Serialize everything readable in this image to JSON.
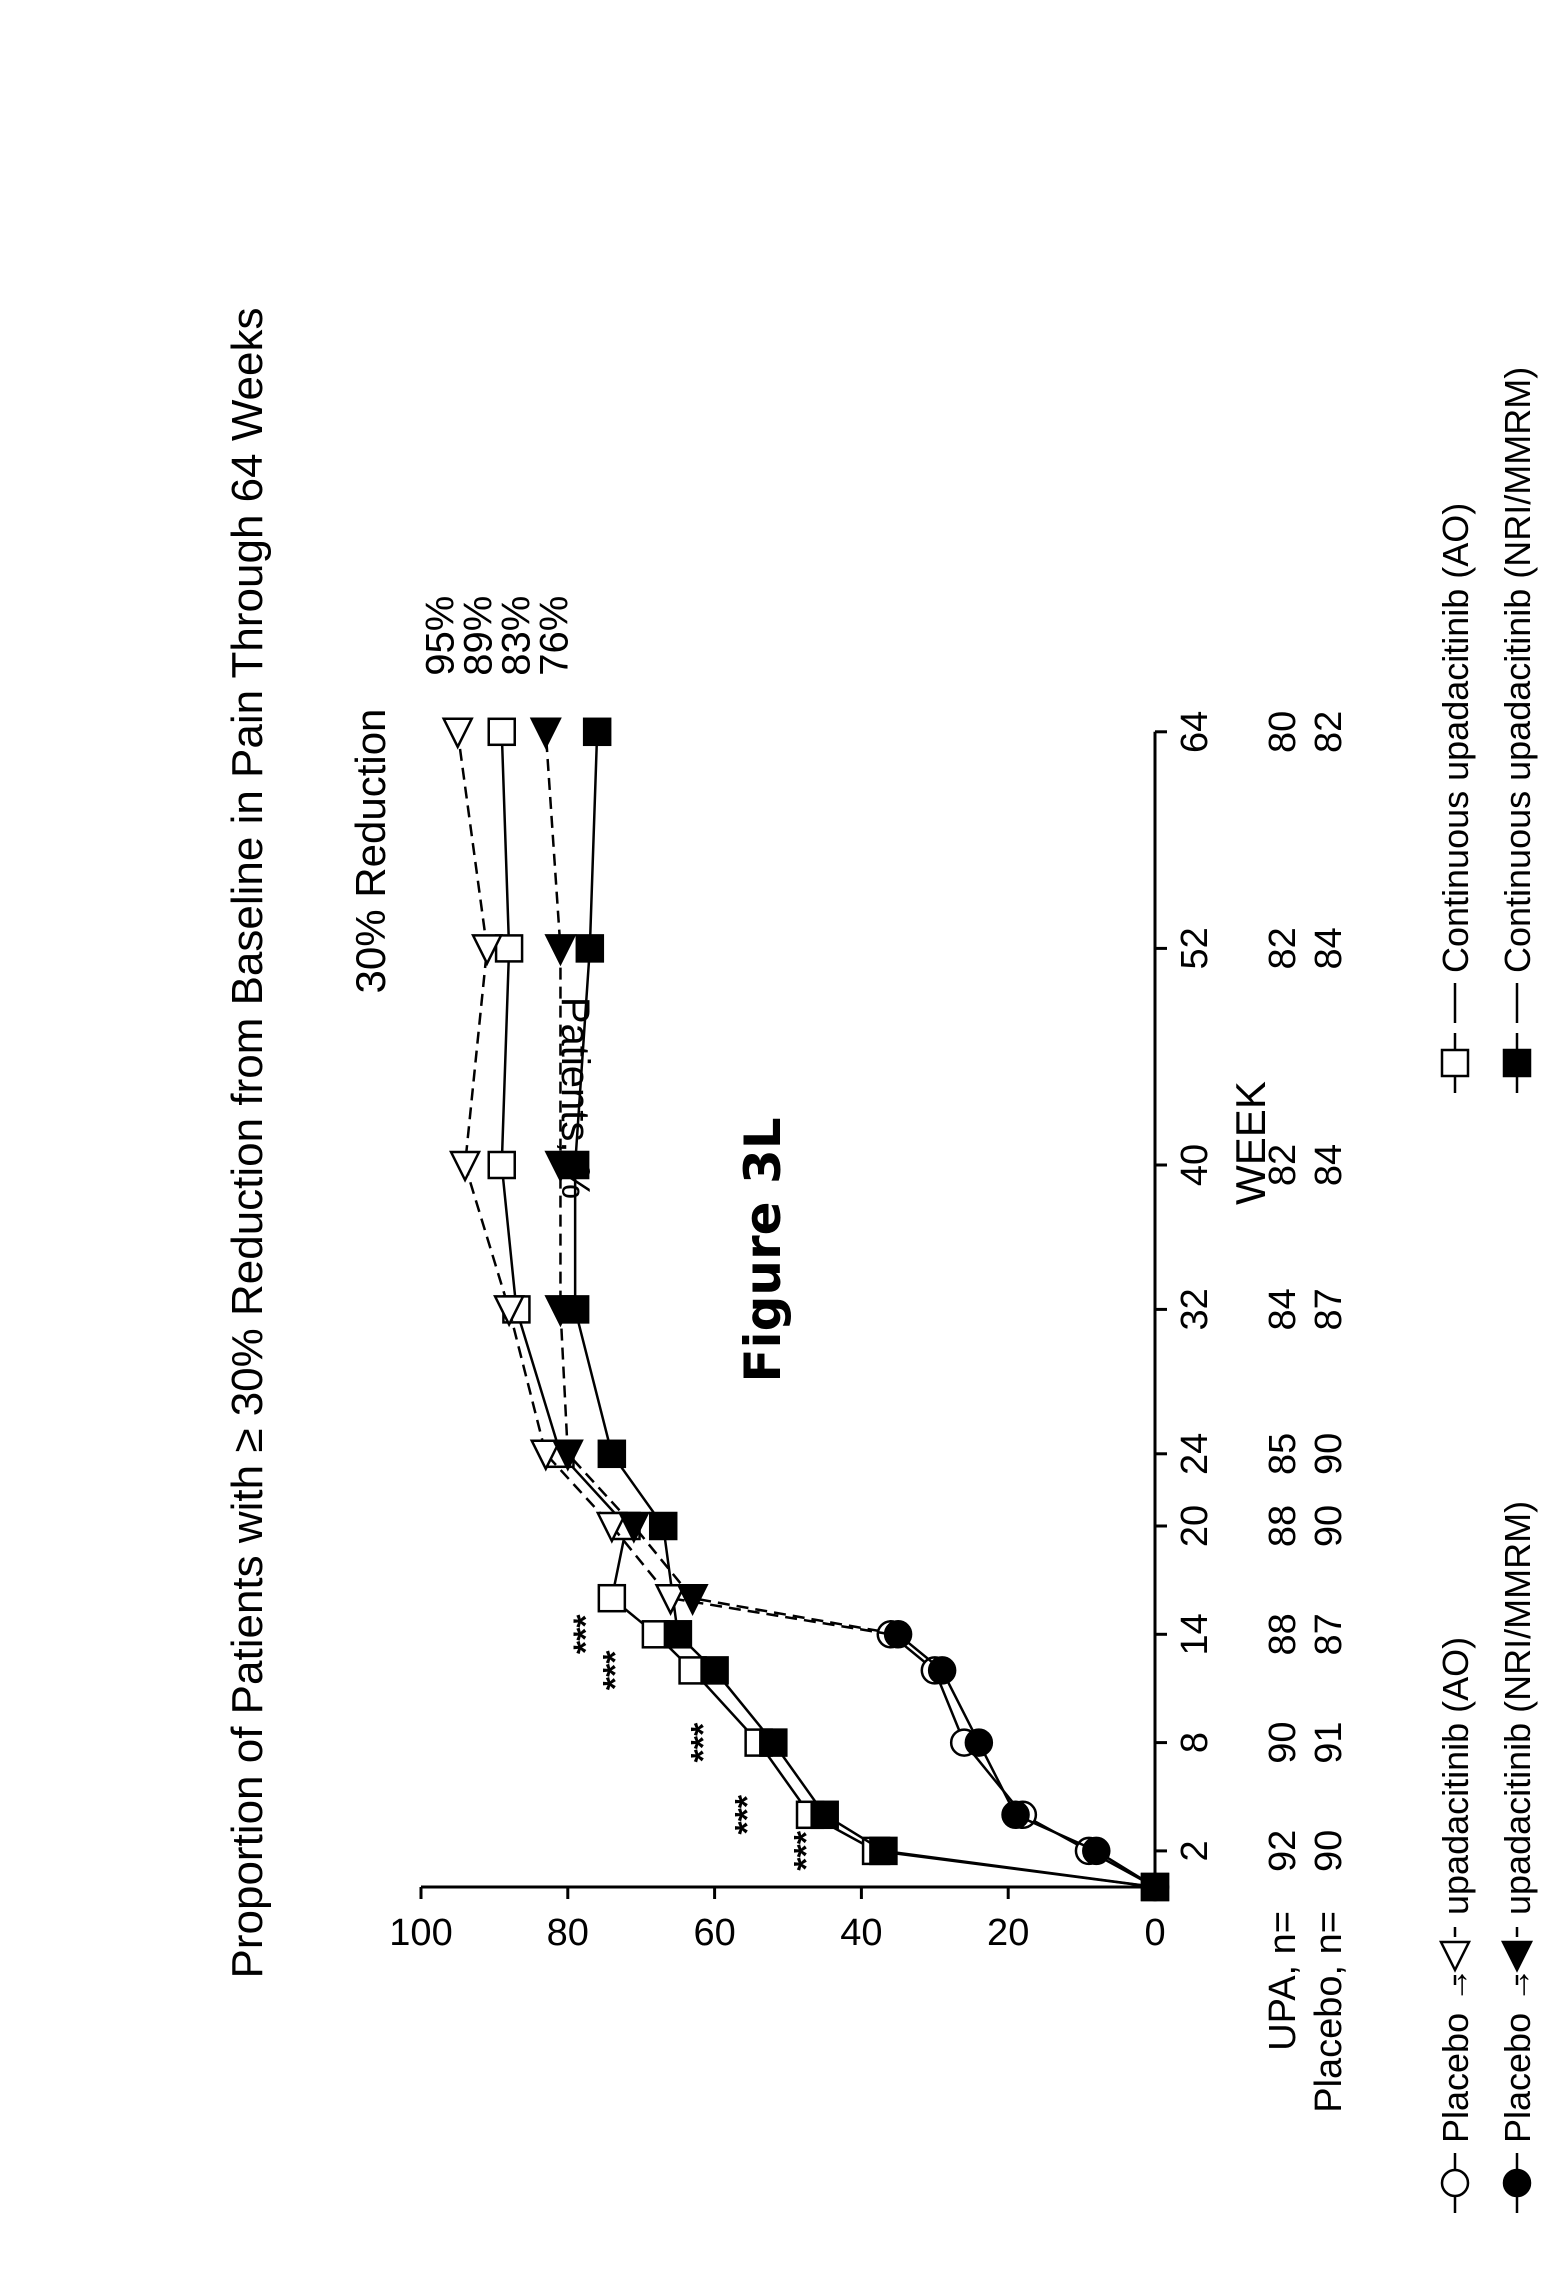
{
  "figure_label": "Figure 3L",
  "chart_data": {
    "type": "line",
    "title": "Proportion of Patients with ≥ 30% Reduction from Baseline in Pain Through 64 Weeks",
    "subtitle": "30% Reduction",
    "xlabel": "WEEK",
    "ylabel": "Patients, %",
    "x_ticks": [
      2,
      8,
      14,
      20,
      24,
      32,
      40,
      52,
      64
    ],
    "y_ticks": [
      0,
      20,
      40,
      60,
      80,
      100
    ],
    "ylim": [
      0,
      100
    ],
    "grid": false,
    "series": [
      {
        "name": "Continuous upadacitinib (AO)",
        "marker": "square-open",
        "line": "solid",
        "points": [
          [
            0,
            0
          ],
          [
            2,
            38
          ],
          [
            4,
            47
          ],
          [
            8,
            54
          ],
          [
            12,
            63
          ],
          [
            14,
            68
          ],
          [
            16,
            74
          ],
          [
            20,
            72
          ],
          [
            24,
            81
          ],
          [
            32,
            87
          ],
          [
            40,
            89
          ],
          [
            52,
            88
          ],
          [
            64,
            89
          ]
        ],
        "end_label": "89%"
      },
      {
        "name": "Continuous upadacitinib (NRI/MMRM)",
        "marker": "square-filled",
        "line": "solid",
        "points": [
          [
            0,
            0
          ],
          [
            2,
            37
          ],
          [
            4,
            45
          ],
          [
            8,
            52
          ],
          [
            12,
            60
          ],
          [
            14,
            65
          ],
          [
            20,
            67
          ],
          [
            24,
            74
          ],
          [
            32,
            79
          ],
          [
            40,
            79
          ],
          [
            52,
            77
          ],
          [
            64,
            76
          ]
        ],
        "end_label": "76%"
      },
      {
        "name": "Placebo → upadacitinib (AO)",
        "marker": "circle-open",
        "line": "solid",
        "points": [
          [
            0,
            0
          ],
          [
            2,
            9
          ],
          [
            4,
            18
          ],
          [
            8,
            26
          ],
          [
            12,
            30
          ],
          [
            14,
            36
          ]
        ]
      },
      {
        "name": "Placebo → upadacitinib (NRI/MMRM)",
        "marker": "circle-filled",
        "line": "solid",
        "points": [
          [
            0,
            0
          ],
          [
            2,
            8
          ],
          [
            4,
            19
          ],
          [
            8,
            24
          ],
          [
            12,
            29
          ],
          [
            14,
            35
          ]
        ]
      },
      {
        "name": "Placebo → upadacitinib (AO)",
        "marker": "triangle-open",
        "line": "dashed",
        "points": [
          [
            14,
            36
          ],
          [
            16,
            66
          ],
          [
            20,
            74
          ],
          [
            24,
            83
          ],
          [
            32,
            88
          ],
          [
            40,
            94
          ],
          [
            52,
            91
          ],
          [
            64,
            95
          ]
        ],
        "end_label": "95%"
      },
      {
        "name": "Placebo → upadacitinib (NRI/MMRM)",
        "marker": "triangle-filled",
        "line": "dashed",
        "points": [
          [
            14,
            35
          ],
          [
            16,
            63
          ],
          [
            20,
            71
          ],
          [
            24,
            80
          ],
          [
            32,
            81
          ],
          [
            40,
            81
          ],
          [
            52,
            81
          ],
          [
            64,
            83
          ]
        ],
        "end_label": "83%"
      }
    ],
    "annotations": [
      {
        "text": "***",
        "x": 2,
        "y": 46
      },
      {
        "text": "***",
        "x": 4,
        "y": 54
      },
      {
        "text": "***",
        "x": 8,
        "y": 60
      },
      {
        "text": "***",
        "x": 12,
        "y": 72
      },
      {
        "text": "***",
        "x": 14,
        "y": 76
      }
    ],
    "n_table": {
      "weeks": [
        2,
        8,
        14,
        20,
        24,
        32,
        40,
        52,
        64
      ],
      "rows": [
        {
          "label": "UPA, n=",
          "values": [
            92,
            90,
            88,
            88,
            85,
            84,
            82,
            82,
            80
          ]
        },
        {
          "label": "Placebo, n=",
          "values": [
            90,
            91,
            87,
            90,
            90,
            87,
            84,
            84,
            82
          ]
        }
      ]
    },
    "legend": [
      {
        "prefix": "Placebo →",
        "text": "upadacitinib (AO)",
        "symbols": [
          "circle-open",
          "triangle-open"
        ],
        "line": "solid-dashed"
      },
      {
        "prefix": "Placebo →",
        "text": "upadacitinib (NRI/MMRM)",
        "symbols": [
          "circle-filled",
          "triangle-filled"
        ],
        "line": "solid-dashed"
      },
      {
        "prefix": "",
        "text": "Continuous upadacitinib (AO)",
        "symbols": [
          "square-open"
        ],
        "line": "solid"
      },
      {
        "prefix": "",
        "text": "Continuous upadacitinib (NRI/MMRM)",
        "symbols": [
          "square-filled"
        ],
        "line": "solid"
      }
    ],
    "legend_position": "bottom"
  }
}
